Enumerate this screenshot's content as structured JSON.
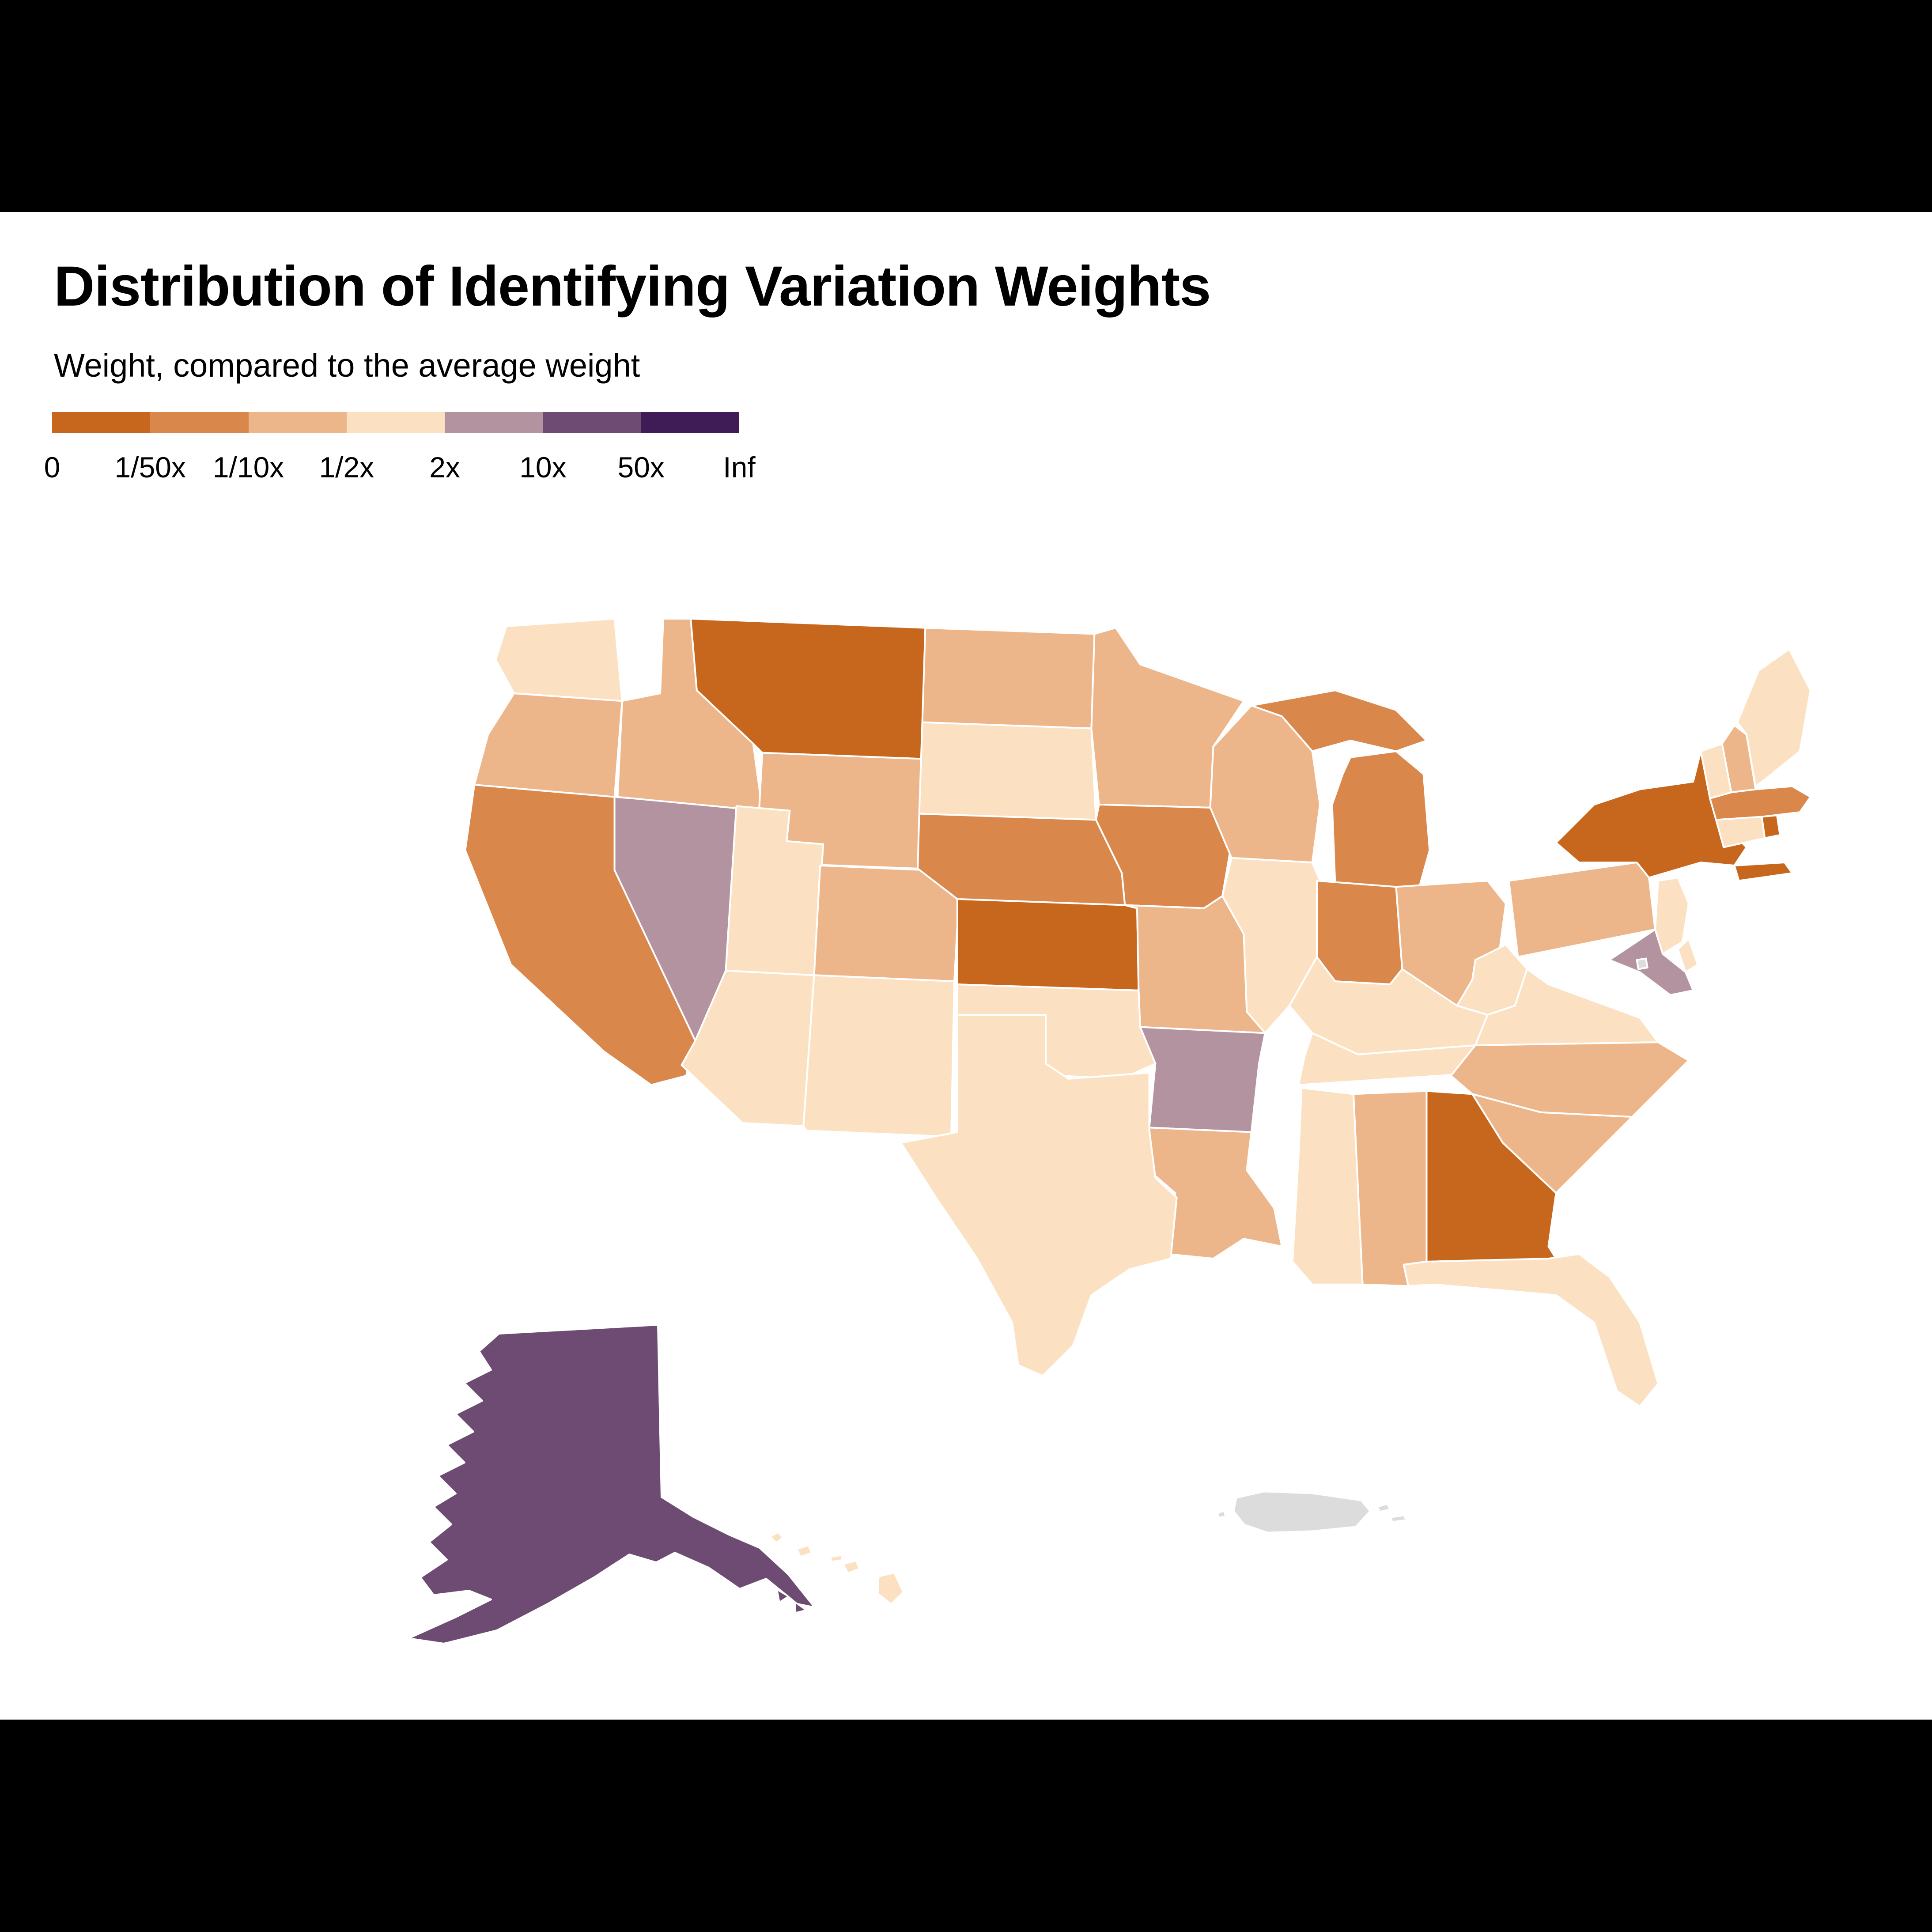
{
  "title": "Distribution of Identifying Variation Weights",
  "legend": {
    "label": "Weight, compared to the average weight",
    "tick_labels": [
      "0",
      "1/50x",
      "1/10x",
      "1/2x",
      "2x",
      "10x",
      "50x",
      "Inf"
    ],
    "colors": [
      "#c7661d",
      "#d9874b",
      "#edb68a",
      "#fbe1c2",
      "#b2939f",
      "#6d4b72",
      "#3f1c55"
    ],
    "no_data_color": "#dcdcdc"
  },
  "chart_data": {
    "type": "choropleth",
    "title": "Distribution of Identifying Variation Weights",
    "legend_title": "Weight, compared to the average weight",
    "unit": "weight relative to average weight",
    "bins": [
      "0-1/50x",
      "1/50x-1/10x",
      "1/10x-1/2x",
      "1/2x-2x",
      "2x-10x",
      "10x-50x",
      "50x-Inf"
    ],
    "bin_colors": [
      "#c7661d",
      "#d9874b",
      "#edb68a",
      "#fbe1c2",
      "#b2939f",
      "#6d4b72",
      "#3f1c55"
    ],
    "no_data_regions": [
      "DC",
      "PR"
    ],
    "states": [
      {
        "id": "WA",
        "name": "Washington",
        "bin": "1/2x-2x"
      },
      {
        "id": "OR",
        "name": "Oregon",
        "bin": "1/10x-1/2x"
      },
      {
        "id": "CA",
        "name": "California",
        "bin": "1/50x-1/10x"
      },
      {
        "id": "NV",
        "name": "Nevada",
        "bin": "2x-10x"
      },
      {
        "id": "ID",
        "name": "Idaho",
        "bin": "1/10x-1/2x"
      },
      {
        "id": "MT",
        "name": "Montana",
        "bin": "0-1/50x"
      },
      {
        "id": "WY",
        "name": "Wyoming",
        "bin": "1/10x-1/2x"
      },
      {
        "id": "UT",
        "name": "Utah",
        "bin": "1/2x-2x"
      },
      {
        "id": "CO",
        "name": "Colorado",
        "bin": "1/10x-1/2x"
      },
      {
        "id": "AZ",
        "name": "Arizona",
        "bin": "1/2x-2x"
      },
      {
        "id": "NM",
        "name": "New Mexico",
        "bin": "1/2x-2x"
      },
      {
        "id": "ND",
        "name": "North Dakota",
        "bin": "1/10x-1/2x"
      },
      {
        "id": "SD",
        "name": "South Dakota",
        "bin": "1/2x-2x"
      },
      {
        "id": "NE",
        "name": "Nebraska",
        "bin": "1/50x-1/10x"
      },
      {
        "id": "KS",
        "name": "Kansas",
        "bin": "0-1/50x"
      },
      {
        "id": "OK",
        "name": "Oklahoma",
        "bin": "1/2x-2x"
      },
      {
        "id": "TX",
        "name": "Texas",
        "bin": "1/2x-2x"
      },
      {
        "id": "MN",
        "name": "Minnesota",
        "bin": "1/10x-1/2x"
      },
      {
        "id": "IA",
        "name": "Iowa",
        "bin": "1/50x-1/10x"
      },
      {
        "id": "MO",
        "name": "Missouri",
        "bin": "1/10x-1/2x"
      },
      {
        "id": "AR",
        "name": "Arkansas",
        "bin": "2x-10x"
      },
      {
        "id": "LA",
        "name": "Louisiana",
        "bin": "1/10x-1/2x"
      },
      {
        "id": "WI",
        "name": "Wisconsin",
        "bin": "1/10x-1/2x"
      },
      {
        "id": "IL",
        "name": "Illinois",
        "bin": "1/2x-2x"
      },
      {
        "id": "MI",
        "name": "Michigan",
        "bin": "1/50x-1/10x"
      },
      {
        "id": "IN",
        "name": "Indiana",
        "bin": "1/50x-1/10x"
      },
      {
        "id": "OH",
        "name": "Ohio",
        "bin": "1/10x-1/2x"
      },
      {
        "id": "KY",
        "name": "Kentucky",
        "bin": "1/2x-2x"
      },
      {
        "id": "TN",
        "name": "Tennessee",
        "bin": "1/2x-2x"
      },
      {
        "id": "MS",
        "name": "Mississippi",
        "bin": "1/2x-2x"
      },
      {
        "id": "AL",
        "name": "Alabama",
        "bin": "1/10x-1/2x"
      },
      {
        "id": "GA",
        "name": "Georgia",
        "bin": "0-1/50x"
      },
      {
        "id": "FL",
        "name": "Florida",
        "bin": "1/2x-2x"
      },
      {
        "id": "SC",
        "name": "South Carolina",
        "bin": "1/10x-1/2x"
      },
      {
        "id": "NC",
        "name": "North Carolina",
        "bin": "1/10x-1/2x"
      },
      {
        "id": "VA",
        "name": "Virginia",
        "bin": "1/2x-2x"
      },
      {
        "id": "WV",
        "name": "West Virginia",
        "bin": "1/2x-2x"
      },
      {
        "id": "MD",
        "name": "Maryland",
        "bin": "2x-10x"
      },
      {
        "id": "DE",
        "name": "Delaware",
        "bin": "1/2x-2x"
      },
      {
        "id": "NJ",
        "name": "New Jersey",
        "bin": "1/2x-2x"
      },
      {
        "id": "PA",
        "name": "Pennsylvania",
        "bin": "1/10x-1/2x"
      },
      {
        "id": "NY",
        "name": "New York",
        "bin": "0-1/50x"
      },
      {
        "id": "CT",
        "name": "Connecticut",
        "bin": "1/2x-2x"
      },
      {
        "id": "RI",
        "name": "Rhode Island",
        "bin": "0-1/50x"
      },
      {
        "id": "MA",
        "name": "Massachusetts",
        "bin": "1/50x-1/10x"
      },
      {
        "id": "VT",
        "name": "Vermont",
        "bin": "1/2x-2x"
      },
      {
        "id": "NH",
        "name": "New Hampshire",
        "bin": "1/10x-1/2x"
      },
      {
        "id": "ME",
        "name": "Maine",
        "bin": "1/2x-2x"
      },
      {
        "id": "AK",
        "name": "Alaska",
        "bin": "10x-50x"
      },
      {
        "id": "HI",
        "name": "Hawaii",
        "bin": "1/2x-2x"
      },
      {
        "id": "DC",
        "name": "District of Columbia",
        "bin": "no data"
      },
      {
        "id": "PR",
        "name": "Puerto Rico",
        "bin": "no data"
      }
    ]
  }
}
